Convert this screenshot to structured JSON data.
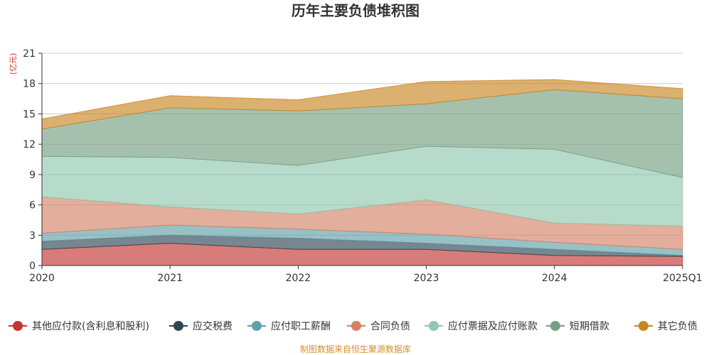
{
  "chart_data": {
    "type": "area",
    "stacked": true,
    "title": "历年主要负债堆积图",
    "y_unit": "(亿元)",
    "x": [
      "2020",
      "2021",
      "2022",
      "2023",
      "2024",
      "2025Q1"
    ],
    "ylim": [
      0,
      21
    ],
    "yticks": [
      "0",
      "3",
      "6",
      "9",
      "12",
      "15",
      "18",
      "21"
    ],
    "grid": true,
    "legend_position": "bottom",
    "series": [
      {
        "name": "其他应付款(含利息和股利)",
        "color": "#c23531",
        "values": [
          1.6,
          2.2,
          1.6,
          1.6,
          1.0,
          0.9
        ]
      },
      {
        "name": "应交税费",
        "color": "#2f4554",
        "values": [
          0.8,
          0.8,
          1.1,
          0.6,
          0.6,
          0.1
        ]
      },
      {
        "name": "应付职工薪酬",
        "color": "#61a0a8",
        "values": [
          0.8,
          1.0,
          0.9,
          0.9,
          0.7,
          0.6
        ]
      },
      {
        "name": "合同负债",
        "color": "#d48265",
        "values": [
          3.6,
          1.8,
          1.5,
          3.4,
          1.9,
          2.3
        ]
      },
      {
        "name": "应付票据及应付账款",
        "color": "#91c7ae",
        "values": [
          4.0,
          4.9,
          4.8,
          5.3,
          7.3,
          4.8
        ]
      },
      {
        "name": "短期借款",
        "color": "#749f83",
        "values": [
          2.7,
          4.9,
          5.4,
          4.2,
          5.9,
          7.8
        ]
      },
      {
        "name": "其它负债",
        "color": "#ca8622",
        "values": [
          1.0,
          1.2,
          1.1,
          2.2,
          1.0,
          1.0
        ]
      }
    ]
  },
  "footer": {
    "source": "制图数据来自恒生聚源数据库"
  }
}
